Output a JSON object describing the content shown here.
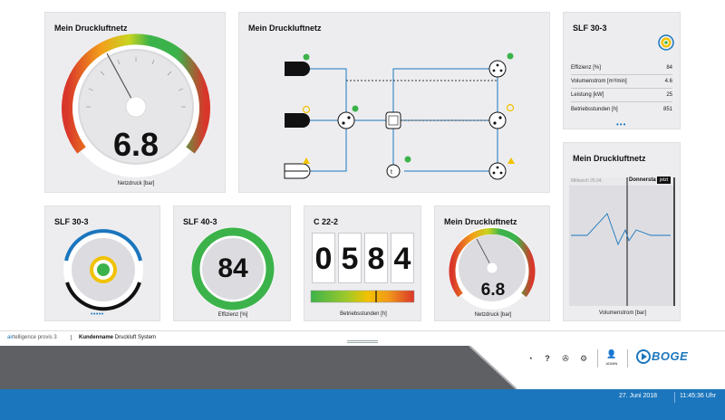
{
  "gauge_large": {
    "title": "Mein Druckluftnetz",
    "value": "6.8",
    "unit_label": "Netzdruck [bar]"
  },
  "network": {
    "title": "Mein Druckluftnetz"
  },
  "slf_detail": {
    "title": "SLF 30-3",
    "rows": [
      {
        "label": "Effizienz [%]",
        "value": "84"
      },
      {
        "label": "Volumenstrom [m³/min]",
        "value": "4.6"
      },
      {
        "label": "Leistung [kW]",
        "value": "25"
      },
      {
        "label": "Betriebsstunden [h]",
        "value": "851"
      }
    ]
  },
  "trend": {
    "title": "Mein Druckluftnetz",
    "label_left": "Mittwoch 25.04.",
    "label_right": "Donnersta",
    "badge": "jetzt",
    "unit_label": "Volumenstrom [bar]"
  },
  "slf30": {
    "title": "SLF 30-3"
  },
  "slf40": {
    "title": "SLF 40-3",
    "value": "84",
    "unit_label": "Effizienz [%]",
    "level": 0.84
  },
  "counter": {
    "title": "C 22-2",
    "digits": [
      "0",
      "5",
      "8",
      "4"
    ],
    "unit_label": "Betriebsstunden [h]"
  },
  "gauge_small": {
    "title": "Mein Druckluftnetz",
    "value": "6.8",
    "unit_label": "Netzdruck [bar]"
  },
  "footer": {
    "brand_prefix": "air",
    "brand_rest": "telligence provis 3",
    "customer_bold": "Kundenname",
    "customer_rest": " Druckluft System",
    "user_label": "ADMIN",
    "logo_text": "BOGE"
  },
  "status": {
    "date": "27. Juni 2018",
    "time": "11:45:36 Uhr"
  },
  "colors": {
    "accent": "#1b76bd",
    "green": "#3cb34a",
    "yellow": "#f2c200",
    "red": "#d9362a"
  }
}
